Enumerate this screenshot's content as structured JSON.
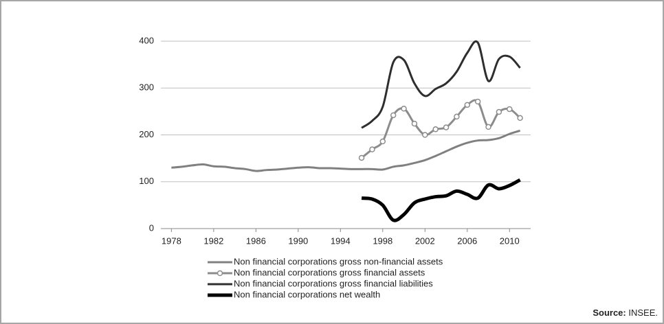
{
  "chart_data": {
    "type": "line",
    "xlim": [
      1977,
      2012
    ],
    "xticks": [
      1978,
      1982,
      1986,
      1990,
      1994,
      1998,
      2002,
      2006,
      2010
    ],
    "ylim": [
      0,
      400
    ],
    "yticks": [
      0,
      100,
      200,
      300,
      400
    ],
    "grid": true,
    "series": [
      {
        "name": "Non financial corporations gross non-financial assets",
        "color": "#808080",
        "marker": false,
        "width": 3,
        "x": [
          1978,
          1979,
          1980,
          1981,
          1982,
          1983,
          1984,
          1985,
          1986,
          1987,
          1988,
          1989,
          1990,
          1991,
          1992,
          1993,
          1994,
          1995,
          1996,
          1997,
          1998,
          1999,
          2000,
          2001,
          2002,
          2003,
          2004,
          2005,
          2006,
          2007,
          2008,
          2009,
          2010,
          2011
        ],
        "values": [
          130,
          132,
          135,
          137,
          133,
          132,
          129,
          127,
          123,
          125,
          126,
          128,
          130,
          131,
          129,
          129,
          128,
          127,
          127,
          127,
          126,
          132,
          135,
          140,
          146,
          155,
          165,
          175,
          183,
          188,
          189,
          193,
          202,
          209
        ]
      },
      {
        "name": "Non financial corporations gross financial assets",
        "color": "#8c8c8c",
        "marker": true,
        "width": 3,
        "x": [
          1996,
          1997,
          1998,
          1999,
          2000,
          2001,
          2002,
          2003,
          2004,
          2005,
          2006,
          2007,
          2008,
          2009,
          2010,
          2011
        ],
        "values": [
          151,
          169,
          186,
          242,
          256,
          224,
          200,
          212,
          216,
          239,
          264,
          271,
          217,
          249,
          255,
          236
        ]
      },
      {
        "name": "Non financial corporations gross financial liabilities",
        "color": "#2e2e2e",
        "marker": false,
        "width": 3,
        "x": [
          1996,
          1997,
          1998,
          1999,
          2000,
          2001,
          2002,
          2003,
          2004,
          2005,
          2006,
          2007,
          2008,
          2009,
          2010,
          2011
        ],
        "values": [
          215,
          230,
          260,
          355,
          360,
          310,
          283,
          298,
          310,
          335,
          375,
          397,
          315,
          362,
          367,
          343
        ]
      },
      {
        "name": "Non financial corporations net wealth",
        "color": "#000000",
        "marker": false,
        "width": 5,
        "x": [
          1996,
          1997,
          1998,
          1999,
          2000,
          2001,
          2002,
          2003,
          2004,
          2005,
          2006,
          2007,
          2008,
          2009,
          2010,
          2011
        ],
        "values": [
          65,
          63,
          50,
          18,
          30,
          55,
          63,
          68,
          70,
          80,
          73,
          65,
          93,
          85,
          92,
          104
        ]
      }
    ],
    "source_label": "Source:",
    "source_text": "INSEE."
  }
}
